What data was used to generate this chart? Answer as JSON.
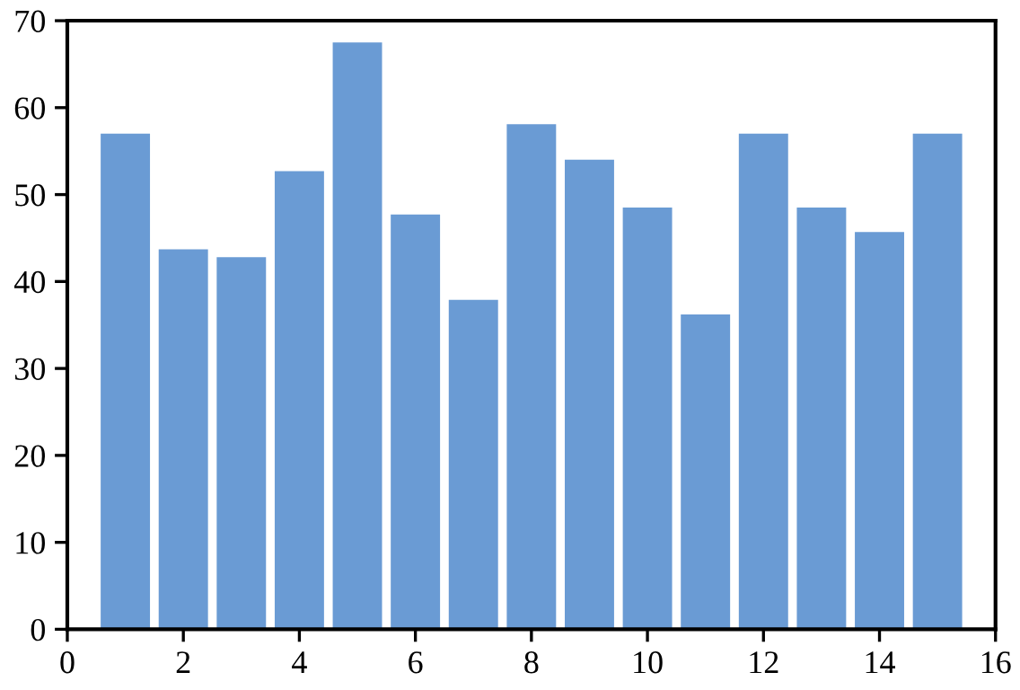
{
  "chart_data": {
    "type": "bar",
    "x": [
      1,
      2,
      3,
      4,
      5,
      6,
      7,
      8,
      9,
      10,
      11,
      12,
      13,
      14,
      15
    ],
    "values": [
      57,
      43.7,
      42.8,
      52.7,
      67.5,
      47.7,
      37.9,
      58.1,
      54,
      48.5,
      36.2,
      57,
      48.5,
      45.7,
      57
    ],
    "color": "#6a9bd4",
    "xlim": [
      0,
      16
    ],
    "xticks": [
      0,
      2,
      4,
      6,
      8,
      10,
      12,
      14,
      16
    ],
    "ylim": [
      0,
      70
    ],
    "yticks": [
      0,
      10,
      20,
      30,
      40,
      50,
      60,
      70
    ],
    "grid": false,
    "legend": false
  }
}
